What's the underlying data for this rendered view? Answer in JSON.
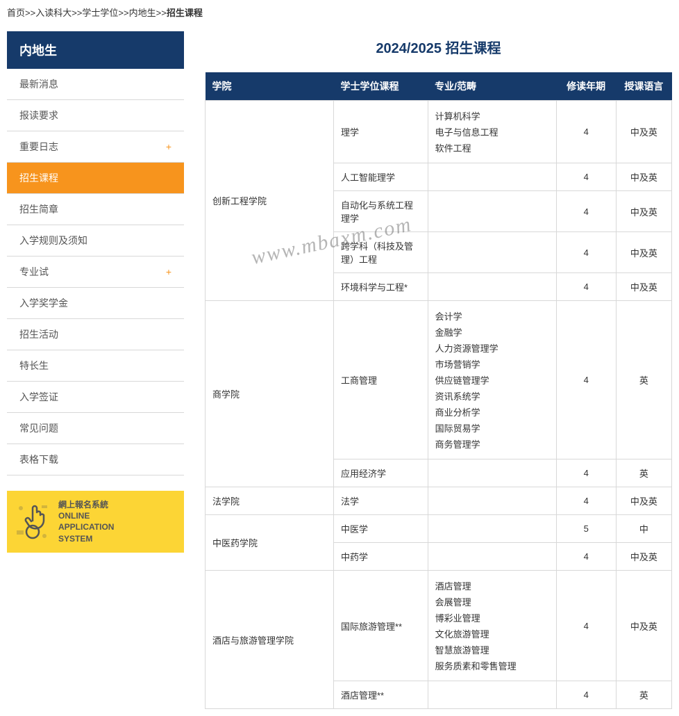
{
  "breadcrumb": {
    "items": [
      "首页",
      "入读科大",
      "学士学位",
      "内地生"
    ],
    "current": "招生课程",
    "sep": ">>"
  },
  "sidebar": {
    "header": "内地生",
    "items": [
      {
        "label": "最新消息",
        "expandable": false,
        "active": false
      },
      {
        "label": "报读要求",
        "expandable": false,
        "active": false
      },
      {
        "label": "重要日志",
        "expandable": true,
        "active": false
      },
      {
        "label": "招生课程",
        "expandable": false,
        "active": true
      },
      {
        "label": "招生简章",
        "expandable": false,
        "active": false
      },
      {
        "label": "入学规则及须知",
        "expandable": false,
        "active": false
      },
      {
        "label": "专业试",
        "expandable": true,
        "active": false
      },
      {
        "label": "入学奖学金",
        "expandable": false,
        "active": false
      },
      {
        "label": "招生活动",
        "expandable": false,
        "active": false
      },
      {
        "label": "特长生",
        "expandable": false,
        "active": false
      },
      {
        "label": "入学签证",
        "expandable": false,
        "active": false
      },
      {
        "label": "常见问题",
        "expandable": false,
        "active": false
      },
      {
        "label": "表格下载",
        "expandable": false,
        "active": false
      }
    ]
  },
  "banner": {
    "line1": "網上報名系統",
    "line2": "ONLINE",
    "line3": "APPLICATION",
    "line4": "SYSTEM",
    "bg_color": "#fcd535",
    "icon_color": "#555555"
  },
  "watermark": "www.mbaxm.com",
  "page_title": "2024/2025 招生课程",
  "table": {
    "headers": [
      "学院",
      "学士学位课程",
      "专业/范畴",
      "修读年期",
      "授课语言"
    ],
    "header_bg": "#163a6a",
    "border_color": "#d8d8d8",
    "col_widths": [
      "150px",
      "110px",
      "150px",
      "70px",
      "65px"
    ],
    "rows": [
      {
        "college": "创新工程学院",
        "college_rowspan": 5,
        "program": "理学",
        "specialties": [
          "计算机科学",
          "电子与信息工程",
          "软件工程"
        ],
        "years": "4",
        "lang": "中及英"
      },
      {
        "program": "人工智能理学",
        "specialties": [],
        "years": "4",
        "lang": "中及英"
      },
      {
        "program": "自动化与系统工程理学",
        "specialties": [],
        "years": "4",
        "lang": "中及英"
      },
      {
        "program": "跨学科（科技及管理）工程",
        "specialties": [],
        "years": "4",
        "lang": "中及英"
      },
      {
        "program": "环境科学与工程*",
        "specialties": [],
        "years": "4",
        "lang": "中及英"
      },
      {
        "college": "商学院",
        "college_rowspan": 2,
        "program": "工商管理",
        "specialties": [
          "会计学",
          "金融学",
          "人力资源管理学",
          "市场营销学",
          "供应链管理学",
          "资讯系统学",
          "商业分析学",
          "国际贸易学",
          "商务管理学"
        ],
        "years": "4",
        "lang": "英"
      },
      {
        "program": "应用经济学",
        "specialties": [],
        "years": "4",
        "lang": "英"
      },
      {
        "college": "法学院",
        "college_rowspan": 1,
        "program": "法学",
        "specialties": [],
        "years": "4",
        "lang": "中及英"
      },
      {
        "college": "中医药学院",
        "college_rowspan": 2,
        "program": "中医学",
        "specialties": [],
        "years": "5",
        "lang": "中"
      },
      {
        "program": "中药学",
        "specialties": [],
        "years": "4",
        "lang": "中及英"
      },
      {
        "college": "酒店与旅游管理学院",
        "college_rowspan": 2,
        "program": "国际旅游管理**",
        "specialties": [
          "酒店管理",
          "会展管理",
          "博彩业管理",
          "文化旅游管理",
          "智慧旅游管理",
          "服务质素和零售管理"
        ],
        "years": "4",
        "lang": "中及英"
      },
      {
        "program": "酒店管理**",
        "specialties": [],
        "years": "4",
        "lang": "英"
      }
    ]
  },
  "colors": {
    "primary": "#163a6a",
    "active": "#f7941d",
    "plus": "#f7941d"
  }
}
